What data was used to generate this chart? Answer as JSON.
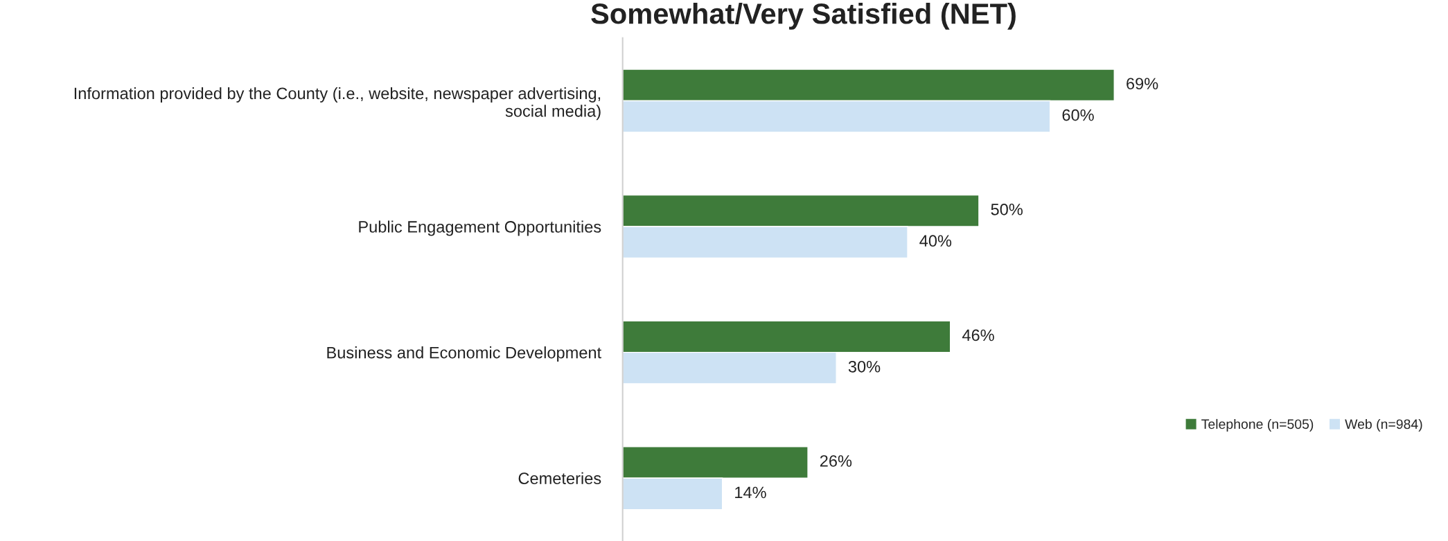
{
  "chart_data": {
    "type": "bar",
    "orientation": "horizontal",
    "title": "Somewhat/Very Satisfied (NET)",
    "categories": [
      "Information provided by the County (i.e., website, newspaper advertising,\nsocial media)",
      "Public Engagement Opportunities",
      "Business and Economic Development",
      "Cemeteries"
    ],
    "series": [
      {
        "name": "Telephone (n=505)",
        "color": "#3e7b3a",
        "values": [
          69,
          50,
          46,
          26
        ],
        "value_labels": [
          "69%",
          "50%",
          "46%",
          "26%"
        ]
      },
      {
        "name": "Web (n=984)",
        "color": "#cde2f4",
        "values": [
          60,
          40,
          30,
          14
        ],
        "value_labels": [
          "60%",
          "40%",
          "30%",
          "14%"
        ]
      }
    ],
    "legend": "right",
    "grid": false
  }
}
